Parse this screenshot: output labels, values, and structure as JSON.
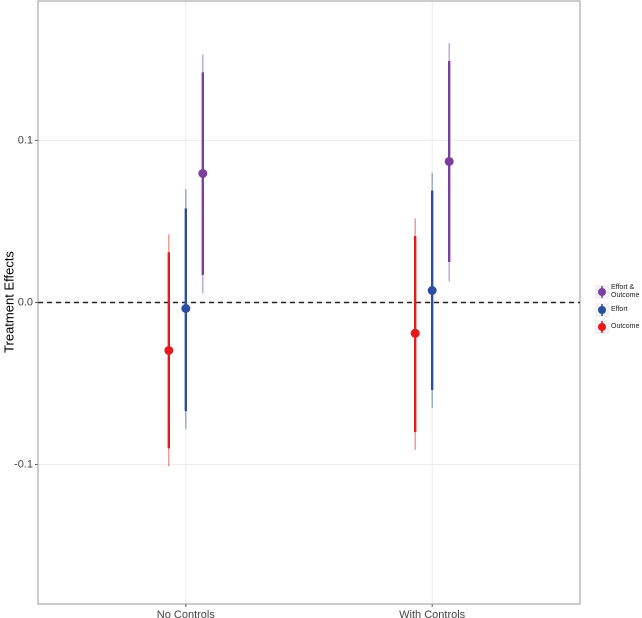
{
  "chart_data": {
    "type": "pointrange",
    "y_label": "Treatment Effects",
    "categories": [
      "No Controls",
      "With Controls"
    ],
    "series": [
      {
        "name": "Effort & Outcome",
        "color": "#7b3f9e",
        "values": [
          0.0796,
          0.087
        ],
        "ci_inner": [
          [
            0.017,
            0.142
          ],
          [
            0.025,
            0.149
          ]
        ],
        "ci_outer": [
          [
            0.0056,
            0.153
          ],
          [
            0.013,
            0.16
          ]
        ]
      },
      {
        "name": "Effort",
        "color": "#2b4ea2",
        "values": [
          -0.0037,
          0.0074
        ],
        "ci_inner": [
          [
            -0.067,
            0.058
          ],
          [
            -0.054,
            0.069
          ]
        ],
        "ci_outer": [
          [
            -0.078,
            0.07
          ],
          [
            -0.065,
            0.08
          ]
        ]
      },
      {
        "name": "Outcome",
        "color": "#e41a1c",
        "values": [
          -0.0296,
          -0.019
        ],
        "ci_inner": [
          [
            -0.09,
            0.031
          ],
          [
            -0.08,
            0.041
          ]
        ],
        "ci_outer": [
          [
            -0.101,
            0.042
          ],
          [
            -0.091,
            0.052
          ]
        ]
      }
    ],
    "ylim": [
      -0.186,
      0.186
    ],
    "yticks": [
      -0.1,
      {
        "value": 0,
        "label": "0.0"
      },
      0.1
    ],
    "hline": 0,
    "grid": true
  }
}
